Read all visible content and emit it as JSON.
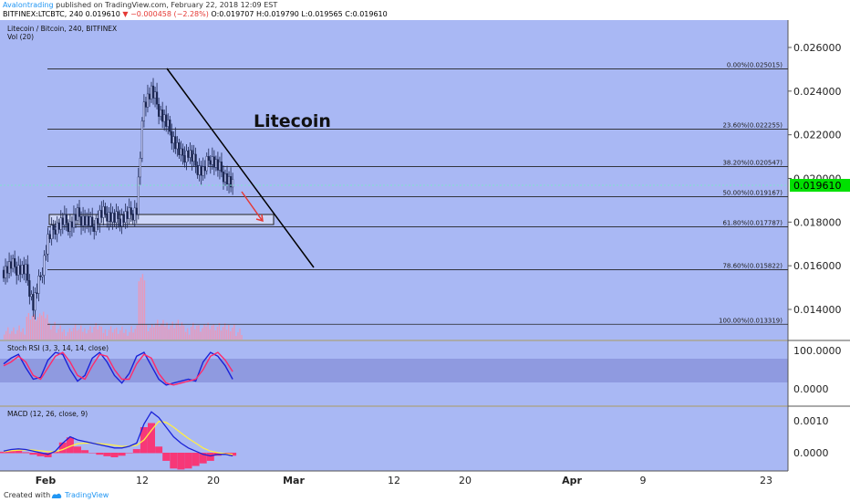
{
  "header": {
    "author": "Avalontrading",
    "published": "published on TradingView.com, February 22, 2018 12:09 EST",
    "symbol_prefix": "BITFINEX:LTCBTC, 240",
    "last_price": "0.019610",
    "change": "−0.000458 (−2.28%)",
    "ohlc": "O:0.019707 H:0.019790 L:0.019565 C:0.019610"
  },
  "main_pane": {
    "title": "Litecoin / Bitcoin, 240, BITFINEX",
    "volume_label": "Vol (20)",
    "annotation": "Litecoin",
    "price_badge": "0.019610"
  },
  "rsi_pane": {
    "title": "Stoch RSI (3, 3, 14, 14, close)"
  },
  "macd_pane": {
    "title": "MACD (12, 26, close, 9)"
  },
  "footer": {
    "created_with": "Created with",
    "brand": "TradingView"
  },
  "colors": {
    "panel_bg": "#a9b8f4",
    "candle": "#1a2550",
    "trendline": "#000000",
    "badge": "#00e000",
    "macd_line": "#1a22d8",
    "signal_line": "#ffee44",
    "histogram": "#ff2a6a",
    "volume_bar": "#ff8fa6",
    "rsi_band": "#8f9ae0"
  },
  "chart_data": [
    {
      "type": "candlestick",
      "pair": "LTC/BTC",
      "x_ticks": [
        "Feb",
        "12",
        "20",
        "Mar",
        "12",
        "20",
        "Apr",
        "9",
        "23"
      ],
      "y_ticks": [
        "0.026000",
        "0.024000",
        "0.022000",
        "0.020000",
        "0.018000",
        "0.016000",
        "0.014000"
      ],
      "ylim": [
        0.0128,
        0.0273
      ],
      "fib_levels": [
        {
          "label": "0.00%(0.025015)",
          "value": 0.025015
        },
        {
          "label": "23.60%(0.022255)",
          "value": 0.022255
        },
        {
          "label": "38.20%(0.020547)",
          "value": 0.020547
        },
        {
          "label": "50.00%(0.019167)",
          "value": 0.019167
        },
        {
          "label": "61.80%(0.017787)",
          "value": 0.017787
        },
        {
          "label": "78.60%(0.015822)",
          "value": 0.015822
        },
        {
          "label": "100.00%(0.013319)",
          "value": 0.013319
        }
      ],
      "close_path": [
        0.0158,
        0.016,
        0.0159,
        0.0157,
        0.0142,
        0.0155,
        0.0172,
        0.0178,
        0.018,
        0.0179,
        0.0183,
        0.0181,
        0.0178,
        0.0183,
        0.0184,
        0.0181,
        0.0182,
        0.0183,
        0.0186,
        0.0235,
        0.024,
        0.0232,
        0.0225,
        0.0218,
        0.021,
        0.0212,
        0.0206,
        0.0203,
        0.021,
        0.0205,
        0.0201,
        0.0196
      ]
    },
    {
      "type": "line",
      "name": "Stoch RSI",
      "y_ticks": [
        "100.0000",
        "0.0000"
      ],
      "series": [
        {
          "values": [
            65,
            80,
            90,
            55,
            25,
            30,
            75,
            95,
            90,
            50,
            20,
            35,
            80,
            95,
            70,
            35,
            15,
            40,
            85,
            95,
            60,
            25,
            10,
            15,
            20,
            25,
            20,
            70,
            95,
            85,
            60,
            25
          ]
        },
        {
          "values": [
            60,
            70,
            85,
            70,
            35,
            25,
            55,
            85,
            95,
            70,
            35,
            25,
            60,
            90,
            85,
            50,
            25,
            25,
            65,
            90,
            80,
            40,
            15,
            10,
            15,
            20,
            25,
            50,
            85,
            95,
            75,
            45
          ]
        }
      ]
    },
    {
      "type": "line",
      "name": "MACD",
      "y_ticks": [
        "0.0010",
        "0.0000"
      ],
      "series": [
        {
          "values": [
            5e-05,
            0.0001,
            0.00012,
            0.0001,
            5e-05,
            0.0,
            -5e-05,
            5e-05,
            0.0003,
            0.0005,
            0.0004,
            0.00035,
            0.0003,
            0.00025,
            0.0002,
            0.00015,
            0.00015,
            0.0002,
            0.0003,
            0.0009,
            0.00128,
            0.0011,
            0.0008,
            0.0005,
            0.0003,
            0.00015,
            5e-05,
            -5e-05,
            -0.0001,
            -5e-05,
            -5e-05,
            -0.0001
          ]
        },
        {
          "values": [
            3e-05,
            6e-05,
            8e-05,
            9e-05,
            8e-05,
            6e-05,
            3e-05,
            3e-05,
            0.0001,
            0.0002,
            0.00028,
            0.0003,
            0.0003,
            0.00028,
            0.00026,
            0.00023,
            0.0002,
            0.0002,
            0.00023,
            0.0004,
            0.0007,
            0.00098,
            0.00095,
            0.0008,
            0.00062,
            0.00045,
            0.0003,
            0.00015,
            5e-05,
            0.0,
            -3e-05,
            -5e-05
          ]
        }
      ]
    }
  ]
}
